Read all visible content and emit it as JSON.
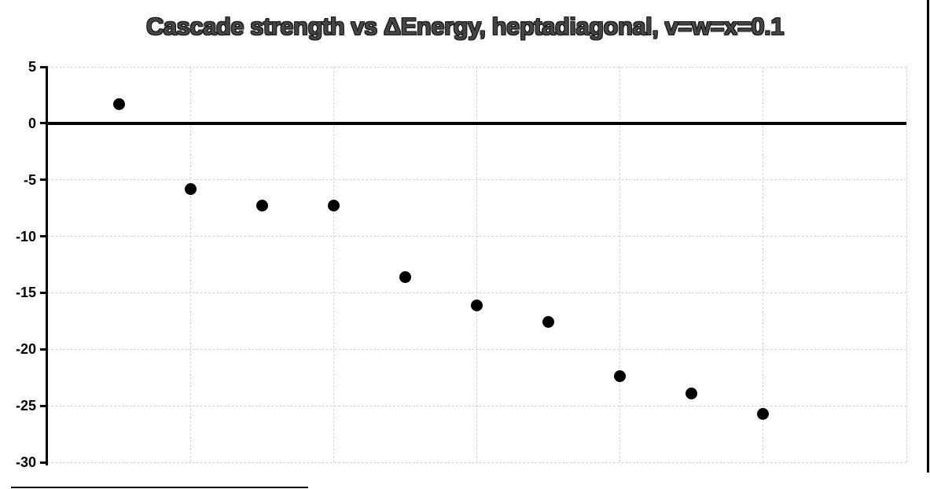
{
  "title": "Cascade strength vs ΔEnergy, heptadiagonal, v=w=x=0.1",
  "chart_data": {
    "type": "scatter",
    "title": "Cascade strength vs ΔEnergy, heptadiagonal, v=w=x=0.1",
    "xlabel": "",
    "ylabel": "",
    "x": [
      1,
      2,
      3,
      4,
      5,
      6,
      7,
      8,
      9,
      10
    ],
    "y": [
      1.7,
      -5.8,
      -7.3,
      -7.3,
      -13.6,
      -16.1,
      -17.6,
      -22.4,
      -23.9,
      -25.7
    ],
    "xlim": [
      0,
      12
    ],
    "ylim": [
      -30,
      5
    ],
    "y_ticks": [
      5,
      0,
      -5,
      -10,
      -15,
      -20,
      -25,
      -30
    ],
    "x_gridlines": [
      2,
      4,
      6,
      8,
      10,
      12
    ],
    "x_tick_labels_visible": false,
    "grid": true,
    "legend": false,
    "marker_color": "#000000",
    "gridline_color": "#d6d6d6",
    "axis_color": "#000000",
    "title_color": "#454545",
    "zero_line_at": 0
  }
}
